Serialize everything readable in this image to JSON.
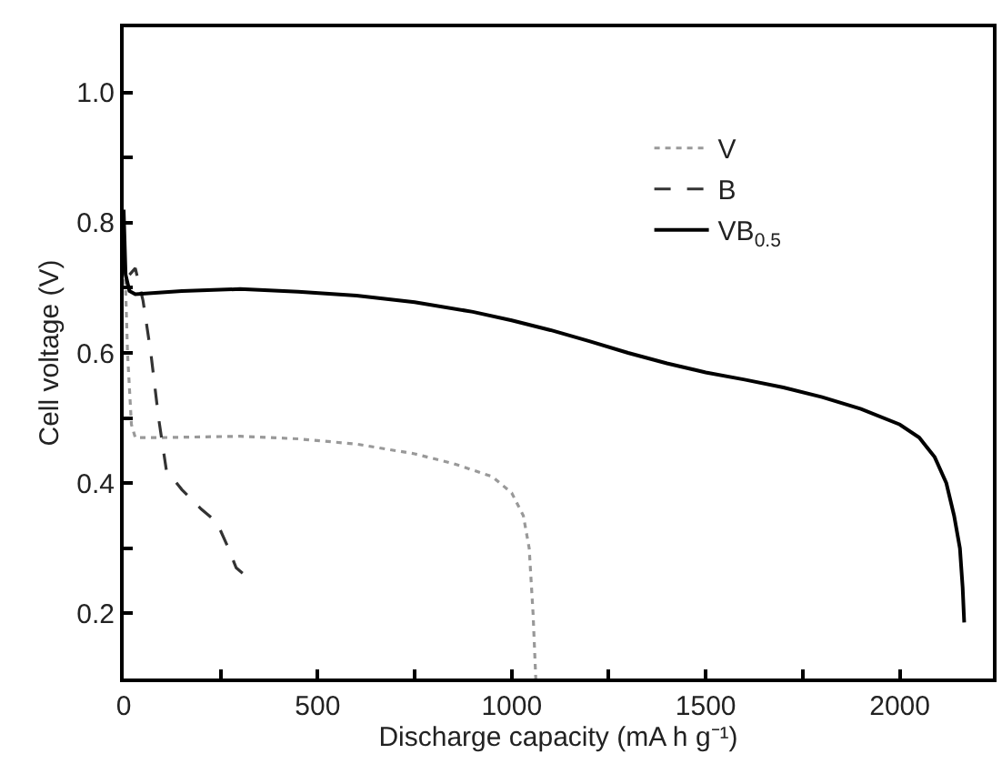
{
  "chart_data": {
    "type": "line",
    "xlabel": "Discharge capacity (mA h g⁻¹)",
    "ylabel": "Cell voltage (V)",
    "xlim": [
      0,
      2240
    ],
    "ylim": [
      0.1,
      1.1
    ],
    "xticks": [
      0,
      {
        "value": 250,
        "label": null
      },
      500,
      {
        "value": 750,
        "label": null
      },
      1000,
      {
        "value": 1250,
        "label": null
      },
      1500,
      {
        "value": 1750,
        "label": null
      },
      2000
    ],
    "yticks": [
      {
        "value": 0.2,
        "label": "0.2"
      },
      {
        "value": 0.3,
        "label": null
      },
      {
        "value": 0.4,
        "label": "0.4"
      },
      {
        "value": 0.5,
        "label": null
      },
      {
        "value": 0.6,
        "label": "0.6"
      },
      {
        "value": 0.7,
        "label": null
      },
      {
        "value": 0.8,
        "label": "0.8"
      },
      {
        "value": 0.9,
        "label": null
      },
      {
        "value": 1.0,
        "label": "1.0"
      }
    ],
    "legend": "top right",
    "marker": "none",
    "series": [
      {
        "name": "V",
        "color": "#999999",
        "line_style": "dotted",
        "x": [
          0,
          5,
          10,
          20,
          30,
          100,
          300,
          450,
          600,
          750,
          850,
          950,
          1000,
          1030,
          1045,
          1055,
          1062
        ],
        "values": [
          0.78,
          0.7,
          0.6,
          0.49,
          0.47,
          0.47,
          0.472,
          0.468,
          0.46,
          0.445,
          0.43,
          0.41,
          0.385,
          0.35,
          0.3,
          0.2,
          0.1
        ]
      },
      {
        "name": "B",
        "color": "#333333",
        "line_style": "dashed",
        "x": [
          15,
          30,
          50,
          70,
          90,
          110,
          150,
          200,
          240,
          270,
          290,
          310
        ],
        "values": [
          0.72,
          0.73,
          0.68,
          0.6,
          0.5,
          0.42,
          0.39,
          0.36,
          0.34,
          0.3,
          0.27,
          0.26
        ]
      },
      {
        "name": "VB$_{0.5}$",
        "color": "#000000",
        "line_style": "solid",
        "x": [
          0,
          5,
          15,
          30,
          150,
          300,
          450,
          600,
          750,
          900,
          1000,
          1100,
          1200,
          1300,
          1400,
          1500,
          1600,
          1700,
          1800,
          1900,
          2000,
          2050,
          2090,
          2120,
          2140,
          2155,
          2162,
          2166
        ],
        "values": [
          0.82,
          0.72,
          0.695,
          0.69,
          0.695,
          0.698,
          0.694,
          0.688,
          0.678,
          0.663,
          0.65,
          0.635,
          0.618,
          0.6,
          0.584,
          0.57,
          0.559,
          0.547,
          0.532,
          0.514,
          0.49,
          0.47,
          0.44,
          0.4,
          0.35,
          0.3,
          0.24,
          0.186
        ]
      }
    ]
  }
}
